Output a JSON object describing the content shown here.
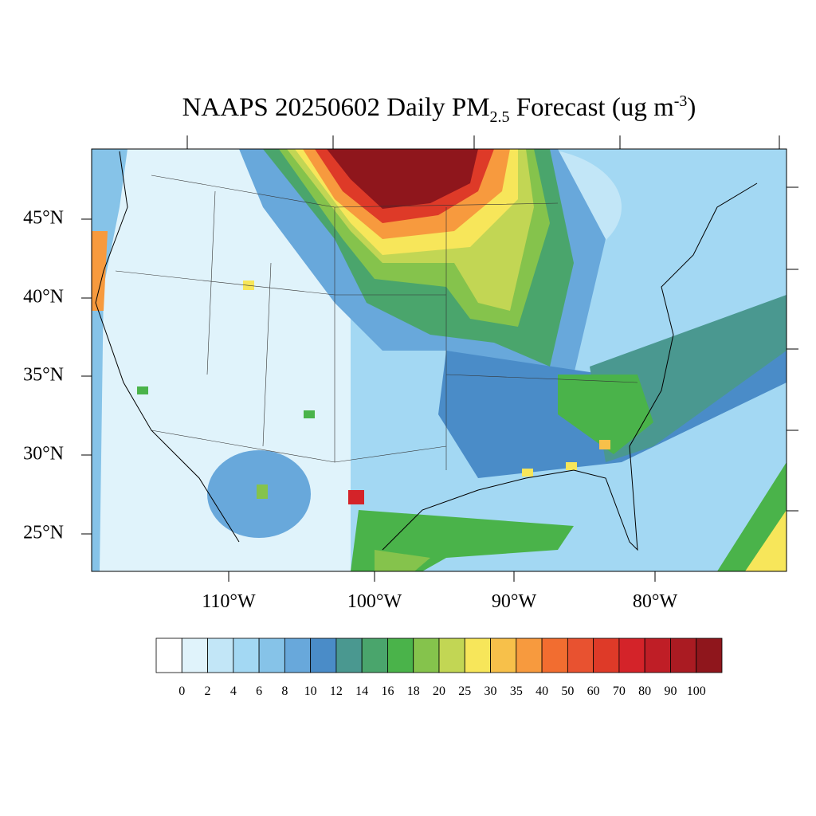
{
  "title": {
    "main": "NAAPS 20250602 Daily PM",
    "subscript": "2.5",
    "rest": " Forecast (ug m",
    "superscript": "-3",
    "close": ")"
  },
  "map": {
    "lat_labels": [
      "45°N",
      "40°N",
      "35°N",
      "30°N",
      "25°N"
    ],
    "lon_labels": [
      "110°W",
      "100°W",
      "90°W",
      "80°W"
    ]
  },
  "colorbar": {
    "levels": [
      0,
      2,
      4,
      6,
      8,
      10,
      12,
      14,
      16,
      18,
      20,
      25,
      30,
      35,
      40,
      50,
      60,
      70,
      80,
      90,
      100
    ],
    "colors": [
      "#ffffff",
      "#e0f3fb",
      "#c2e6f7",
      "#a3d8f3",
      "#86c3e8",
      "#68a8db",
      "#4a8cc8",
      "#4a9890",
      "#4aa56c",
      "#4ab34a",
      "#85c34c",
      "#c2d654",
      "#f7e65a",
      "#f7c04a",
      "#f79a3e",
      "#f26d30",
      "#e85230",
      "#de3a28",
      "#d42329",
      "#bf1e26",
      "#aa1b22",
      "#8f161c"
    ]
  }
}
